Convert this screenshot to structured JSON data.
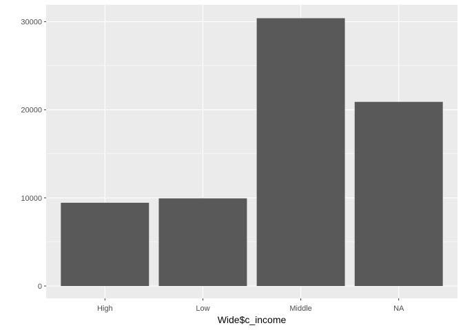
{
  "chart_data": {
    "type": "bar",
    "categories": [
      "High",
      "Low",
      "Middle",
      "NA"
    ],
    "values": [
      9450,
      9950,
      30400,
      20900
    ],
    "xlabel": "Wide$c_income",
    "ylabel": "",
    "ylim": [
      0,
      31920
    ],
    "yticks": [
      0,
      10000,
      20000,
      30000
    ],
    "grid": true,
    "colors": {
      "panel": "#ebebeb",
      "grid": "#ffffff",
      "bar": "#595959",
      "tick_text": "#4d4d4d",
      "tick_mark": "#333333"
    }
  }
}
